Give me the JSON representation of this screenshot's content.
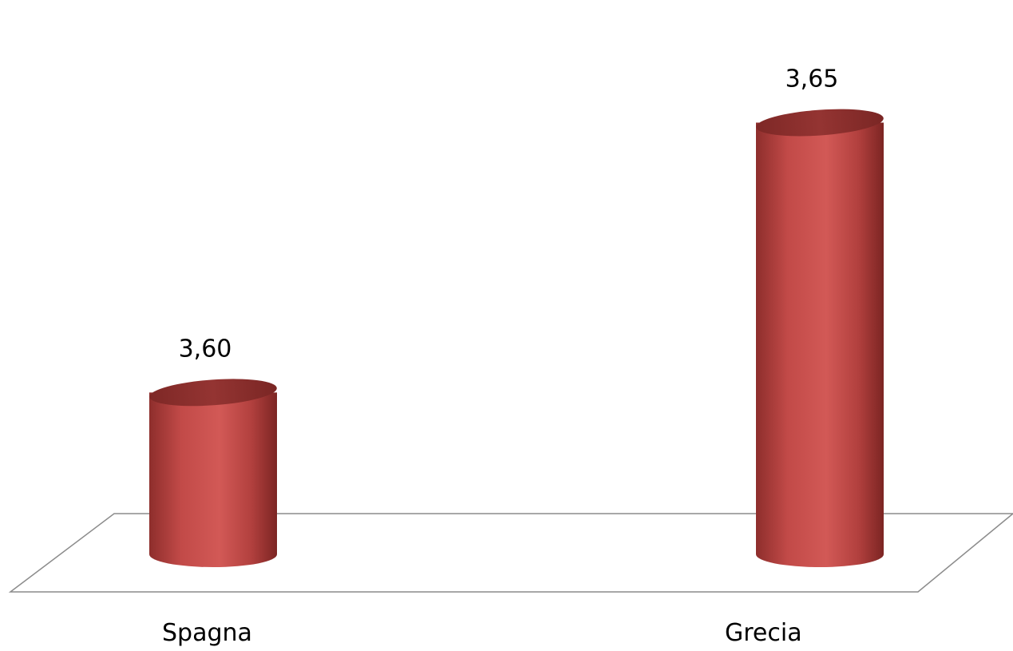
{
  "chart_data": {
    "type": "bar",
    "categories": [
      "Spagna",
      "Grecia"
    ],
    "values": [
      3.6,
      3.65
    ],
    "value_labels": [
      "3,60",
      "3,65"
    ],
    "title": "",
    "xlabel": "",
    "ylabel": "",
    "ylim": [
      3.57,
      3.66
    ],
    "grid": false,
    "legend": "none",
    "bar_color": "#c0504d",
    "floor_color": "#808080"
  }
}
